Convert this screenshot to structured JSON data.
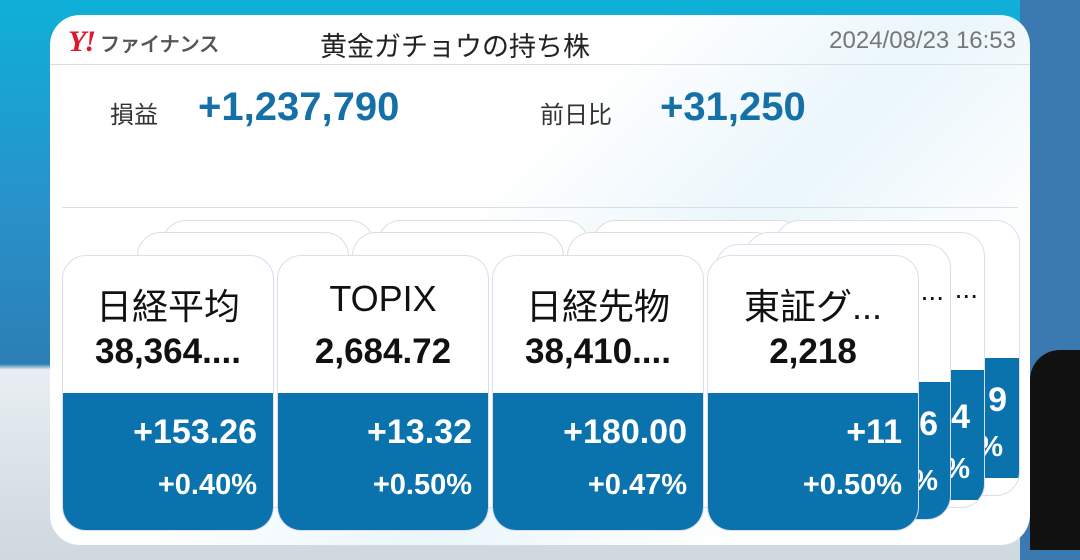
{
  "header": {
    "logo_mark": "Y!",
    "logo_text": "ファイナンス",
    "title": "黄金ガチョウの持ち株",
    "timestamp": "2024/08/23 16:53"
  },
  "summary": {
    "pl_label": "損益",
    "pl_value": "+1,237,790",
    "day_label": "前日比",
    "day_value": "+31,250"
  },
  "colors": {
    "accent": "#0a72ad",
    "value_text": "#1570a8",
    "logo": "#e0162b"
  },
  "cards": [
    {
      "name": "日経平均",
      "price": "38,364....",
      "change": "+153.26",
      "pct": "+0.40%"
    },
    {
      "name": "TOPIX",
      "price": "2,684.72",
      "change": "+13.32",
      "pct": "+0.50%"
    },
    {
      "name": "日経先物",
      "price": "38,410....",
      "change": "+180.00",
      "pct": "+0.47%"
    },
    {
      "name": "東証グ...",
      "price": "2,218",
      "change": "+11",
      "pct": "+0.50%"
    }
  ],
  "hidden_cards": [
    {
      "name": "...",
      "change": "6",
      "pct": "%"
    },
    {
      "name": "...",
      "change": "4",
      "pct": "%"
    },
    {
      "name": "",
      "change": "9",
      "pct": "%"
    }
  ]
}
